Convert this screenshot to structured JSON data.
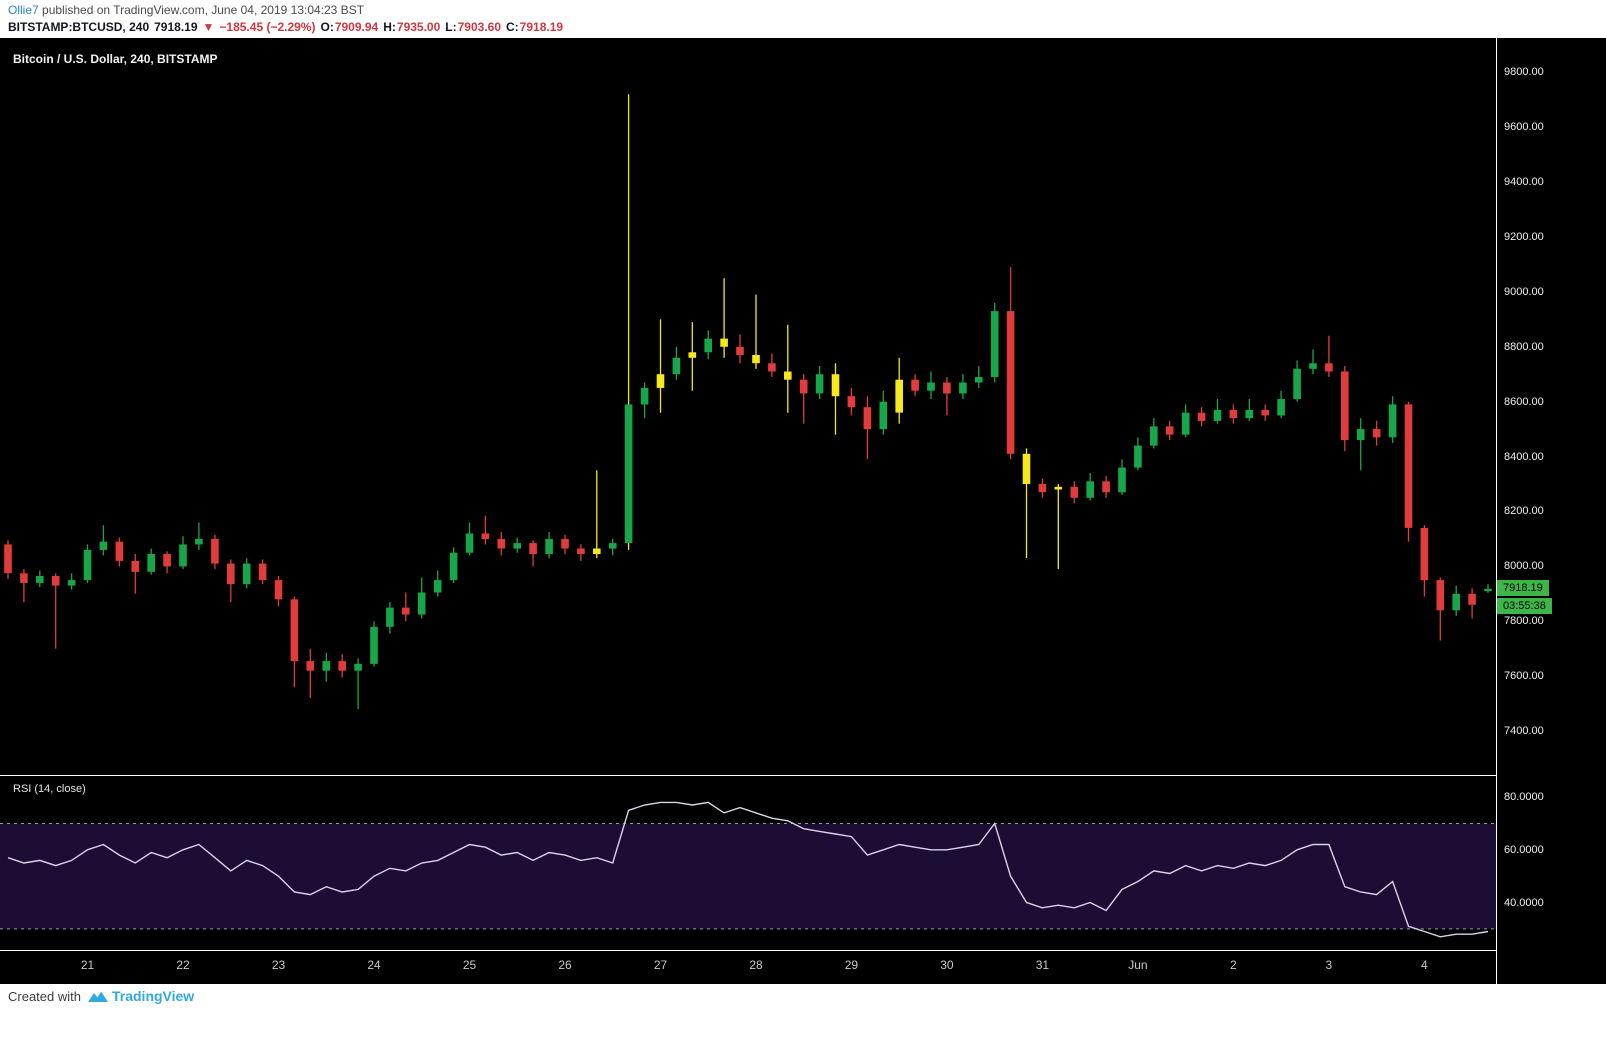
{
  "header": {
    "author": "Ollie7",
    "published": " published on TradingView.com, June 04, 2019 13:04:23 BST",
    "symbol": "BITSTAMP:BTCUSD, 240",
    "last_price": "7918.19",
    "change_arrow": "▼",
    "change": "−185.45 (−2.29%)",
    "o_label": "O:",
    "o_value": "7909.94",
    "h_label": "H:",
    "h_value": "7935.00",
    "l_label": "L:",
    "l_value": "7903.60",
    "c_label": "C:",
    "c_value": "7918.19"
  },
  "footer": {
    "created_with": "Created with",
    "brand": "TradingView"
  },
  "colors": {
    "up": "#17a74a",
    "down": "#e03c3c",
    "highlight": "#f6e81c",
    "rsi_line": "#d9d4e8",
    "rsi_band_fill": "rgba(136,66,255,0.20)",
    "rsi_band_line": "#9b9b9b",
    "price_label_bg": "#3cb549",
    "countdown_bg": "#3cb549"
  },
  "chart_data": {
    "type": "bar",
    "subtype": "candlestick-with-rsi",
    "title": "Bitcoin / U.S. Dollar, 240, BITSTAMP",
    "symbol": "BITSTAMP:BTCUSD",
    "interval": "240",
    "price_axis_ticks": [
      9800,
      9600,
      9400,
      9200,
      9000,
      8800,
      8600,
      8400,
      8200,
      8000,
      7800,
      7600,
      7400
    ],
    "price_scale": {
      "min": 7240,
      "max": 9925
    },
    "last_price": 7918.19,
    "countdown": "03:55:38",
    "x_axis": {
      "labels": [
        "21",
        "22",
        "23",
        "24",
        "25",
        "26",
        "27",
        "28",
        "29",
        "30",
        "31",
        "Jun",
        "2",
        "3",
        "4"
      ],
      "indices": [
        5,
        11,
        17,
        23,
        29,
        35,
        41,
        47,
        53,
        59,
        65,
        71,
        77,
        83,
        89
      ]
    },
    "candles": [
      [
        8080,
        8095,
        7955,
        7975
      ],
      [
        7975,
        7990,
        7870,
        7940
      ],
      [
        7940,
        7985,
        7925,
        7965
      ],
      [
        7965,
        7975,
        7700,
        7930
      ],
      [
        7930,
        7975,
        7915,
        7950
      ],
      [
        7950,
        8080,
        7940,
        8060
      ],
      [
        8060,
        8150,
        8040,
        8090
      ],
      [
        8090,
        8105,
        8000,
        8020
      ],
      [
        8020,
        8045,
        7900,
        7980
      ],
      [
        7980,
        8065,
        7970,
        8045
      ],
      [
        8045,
        8055,
        7975,
        8000
      ],
      [
        8000,
        8110,
        7990,
        8080
      ],
      [
        8080,
        8160,
        8060,
        8100
      ],
      [
        8100,
        8115,
        7990,
        8010
      ],
      [
        8010,
        8025,
        7870,
        7935
      ],
      [
        7935,
        8030,
        7920,
        8010
      ],
      [
        8010,
        8025,
        7935,
        7950
      ],
      [
        7950,
        7965,
        7855,
        7880
      ],
      [
        7880,
        7890,
        7560,
        7655
      ],
      [
        7655,
        7700,
        7520,
        7620
      ],
      [
        7620,
        7685,
        7580,
        7655
      ],
      [
        7655,
        7680,
        7595,
        7620
      ],
      [
        7620,
        7665,
        7480,
        7645
      ],
      [
        7645,
        7800,
        7635,
        7780
      ],
      [
        7780,
        7870,
        7755,
        7850
      ],
      [
        7850,
        7905,
        7800,
        7825
      ],
      [
        7825,
        7960,
        7810,
        7905
      ],
      [
        7905,
        7985,
        7890,
        7950
      ],
      [
        7950,
        8070,
        7940,
        8050
      ],
      [
        8050,
        8160,
        8040,
        8120
      ],
      [
        8120,
        8185,
        8080,
        8100
      ],
      [
        8100,
        8125,
        8040,
        8065
      ],
      [
        8065,
        8105,
        8050,
        8085
      ],
      [
        8085,
        8095,
        8000,
        8045
      ],
      [
        8045,
        8125,
        8030,
        8100
      ],
      [
        8100,
        8115,
        8045,
        8065
      ],
      [
        8065,
        8080,
        8020,
        8045
      ],
      [
        8045,
        8350,
        8030,
        8065
      ],
      [
        8065,
        8100,
        8040,
        8085
      ],
      [
        8085,
        9720,
        8060,
        8590
      ],
      [
        8590,
        8670,
        8540,
        8650
      ],
      [
        8650,
        8900,
        8560,
        8700
      ],
      [
        8700,
        8800,
        8680,
        8760
      ],
      [
        8760,
        8890,
        8640,
        8780
      ],
      [
        8780,
        8860,
        8755,
        8830
      ],
      [
        8830,
        9050,
        8760,
        8800
      ],
      [
        8800,
        8845,
        8740,
        8770
      ],
      [
        8770,
        8990,
        8720,
        8740
      ],
      [
        8740,
        8775,
        8690,
        8710
      ],
      [
        8710,
        8880,
        8560,
        8680
      ],
      [
        8680,
        8700,
        8520,
        8630
      ],
      [
        8630,
        8730,
        8610,
        8700
      ],
      [
        8700,
        8740,
        8480,
        8620
      ],
      [
        8620,
        8650,
        8550,
        8580
      ],
      [
        8580,
        8620,
        8390,
        8500
      ],
      [
        8500,
        8640,
        8480,
        8600
      ],
      [
        8560,
        8760,
        8520,
        8680
      ],
      [
        8680,
        8700,
        8620,
        8640
      ],
      [
        8640,
        8710,
        8610,
        8670
      ],
      [
        8670,
        8690,
        8550,
        8630
      ],
      [
        8630,
        8700,
        8610,
        8670
      ],
      [
        8670,
        8730,
        8650,
        8690
      ],
      [
        8690,
        8960,
        8670,
        8930
      ],
      [
        8930,
        9090,
        8390,
        8410
      ],
      [
        8410,
        8430,
        8030,
        8300
      ],
      [
        8300,
        8320,
        8250,
        8270
      ],
      [
        8280,
        8300,
        7990,
        8290
      ],
      [
        8290,
        8310,
        8230,
        8250
      ],
      [
        8250,
        8340,
        8240,
        8310
      ],
      [
        8310,
        8330,
        8250,
        8270
      ],
      [
        8270,
        8390,
        8260,
        8360
      ],
      [
        8360,
        8470,
        8350,
        8440
      ],
      [
        8440,
        8540,
        8430,
        8510
      ],
      [
        8510,
        8530,
        8460,
        8480
      ],
      [
        8480,
        8590,
        8470,
        8560
      ],
      [
        8560,
        8580,
        8510,
        8530
      ],
      [
        8530,
        8610,
        8520,
        8570
      ],
      [
        8570,
        8590,
        8520,
        8540
      ],
      [
        8540,
        8610,
        8530,
        8570
      ],
      [
        8570,
        8590,
        8530,
        8550
      ],
      [
        8550,
        8640,
        8540,
        8610
      ],
      [
        8610,
        8750,
        8600,
        8720
      ],
      [
        8720,
        8790,
        8700,
        8740
      ],
      [
        8740,
        8840,
        8690,
        8710
      ],
      [
        8710,
        8730,
        8420,
        8460
      ],
      [
        8460,
        8540,
        8350,
        8500
      ],
      [
        8500,
        8530,
        8440,
        8470
      ],
      [
        8470,
        8620,
        8450,
        8590
      ],
      [
        8590,
        8600,
        8090,
        8140
      ],
      [
        8140,
        8150,
        7890,
        7950
      ],
      [
        7950,
        7960,
        7730,
        7840
      ],
      [
        7840,
        7930,
        7820,
        7900
      ],
      [
        7900,
        7920,
        7810,
        7860
      ],
      [
        7909.94,
        7935,
        7903.6,
        7918.19
      ]
    ],
    "highlighted_indices": [
      37,
      41,
      43,
      45,
      47,
      49,
      52,
      56,
      64,
      66
    ],
    "spike_index": 39,
    "rsi": {
      "label": "RSI (14, close)",
      "period": 14,
      "source": "close",
      "bands": [
        70,
        30
      ],
      "axis_ticks": [
        80,
        60,
        40
      ],
      "scale": {
        "min": 22,
        "max": 88
      },
      "values": [
        57,
        55,
        56,
        54,
        56,
        60,
        62,
        58,
        55,
        59,
        57,
        60,
        62,
        57,
        52,
        56,
        54,
        50,
        44,
        43,
        46,
        44,
        45,
        50,
        53,
        52,
        55,
        56,
        59,
        62,
        61,
        58,
        59,
        56,
        59,
        58,
        56,
        57,
        55,
        75,
        77,
        78,
        78,
        77,
        78,
        74,
        76,
        74,
        72,
        71,
        68,
        67,
        66,
        65,
        58,
        60,
        62,
        61,
        60,
        60,
        61,
        62,
        70,
        50,
        40,
        38,
        39,
        38,
        40,
        37,
        45,
        48,
        52,
        51,
        54,
        52,
        54,
        53,
        55,
        54,
        56,
        60,
        62,
        62,
        46,
        44,
        43,
        48,
        31,
        29,
        27,
        28,
        28,
        29
      ]
    }
  }
}
